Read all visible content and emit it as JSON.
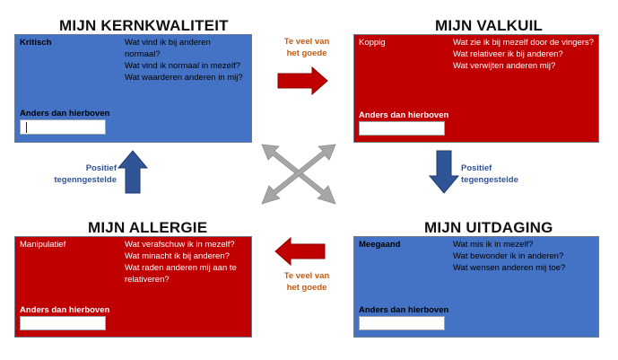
{
  "quadrants": {
    "kernkwaliteit": {
      "title": "MIJN KERNKWALITEIT",
      "label": "Kritisch",
      "questions": [
        "Wat vind ik bij anderen",
        "normaal?",
        "Wat vind ik normaal in mezelf?",
        "Wat waarderen anderen in mij?"
      ],
      "other_label": "Anders dan hierboven",
      "color": "#4472c4"
    },
    "valkuil": {
      "title": "MIJN VALKUIL",
      "label": "Koppig",
      "questions": [
        "Wat zie ik bij mezelf door de vingers?",
        "Wat relativeer ik bij anderen?",
        "Wat verwijten anderen mij?"
      ],
      "other_label": "Anders dan hierboven",
      "color": "#c00000"
    },
    "allergie": {
      "title": "MIJN ALLERGIE",
      "label": "Manipulatief",
      "questions": [
        "Wat verafschuw ik in mezelf?",
        "Wat minacht ik bij anderen?",
        "Wat raden anderen mij aan te",
        "relativeren?"
      ],
      "other_label": "Anders dan hierboven",
      "color": "#c00000"
    },
    "uitdaging": {
      "title": "MIJN UITDAGING",
      "label": "Meegaand",
      "questions": [
        "Wat mis ik in mezelf?",
        "Wat bewonder ik in anderen?",
        "Wat wensen anderen mij toe?"
      ],
      "other_label": "Anders dan hierboven",
      "color": "#4472c4"
    }
  },
  "connectors": {
    "top": [
      "Te veel van",
      "het goede"
    ],
    "bottom": [
      "Te veel van",
      "het goede"
    ],
    "right": [
      "Positief",
      "tegengestelde"
    ],
    "left": [
      "Positief",
      "tegenngestelde"
    ],
    "accent_orange": "#c55a11",
    "accent_navy": "#2f5597",
    "arrow_red": "#c00000",
    "arrow_blue": "#2f5597",
    "cross_gray": "#a6a6a6"
  }
}
